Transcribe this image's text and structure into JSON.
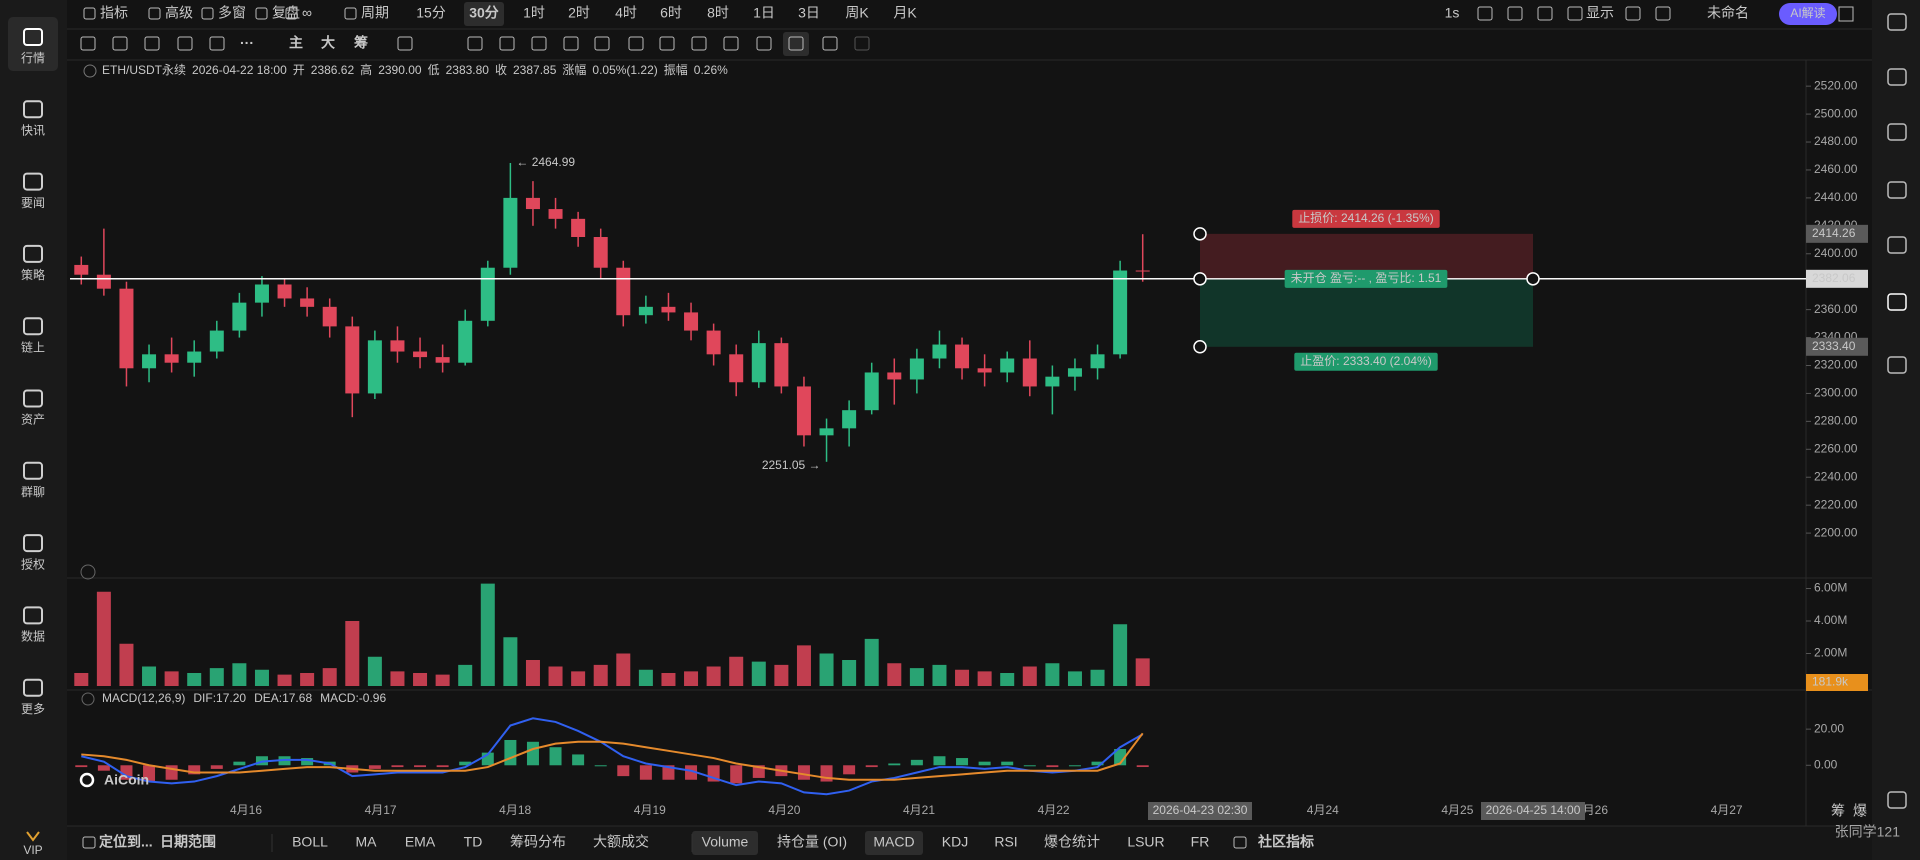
{
  "sidebar": {
    "items": [
      "行情",
      "快讯",
      "要闻",
      "策略",
      "链上",
      "资产",
      "群聊",
      "授权",
      "数据",
      "更多"
    ],
    "vip": "VIP"
  },
  "toolbar": {
    "left": [
      "指标",
      "高级",
      "多窗",
      "复盘",
      "∞",
      "周期"
    ],
    "periods": [
      {
        "label": "15分"
      },
      {
        "label": "30分",
        "active": true
      },
      {
        "label": "1时"
      },
      {
        "label": "2时"
      },
      {
        "label": "4时"
      },
      {
        "label": "6时"
      },
      {
        "label": "8时"
      },
      {
        "label": "1日"
      },
      {
        "label": "3日"
      },
      {
        "label": "周K"
      },
      {
        "label": "月K"
      }
    ],
    "right": [
      "1s",
      "显示",
      "未命名"
    ],
    "ai": "AI解读"
  },
  "drawing_tools": {
    "text_tools": [
      "···",
      "主",
      "大",
      "筹"
    ]
  },
  "info": {
    "symbol": "ETH/USDT永续",
    "time": "2026-04-22 18:00",
    "fields": [
      {
        "name": "开",
        "value": "2386.62"
      },
      {
        "name": "高",
        "value": "2390.00"
      },
      {
        "name": "低",
        "value": "2383.80"
      },
      {
        "name": "收",
        "value": "2387.85"
      },
      {
        "name": "涨幅",
        "value": "0.05%(1.22)"
      },
      {
        "name": "振幅",
        "value": "0.26%"
      }
    ]
  },
  "price": {
    "up_color": "#2ebd85",
    "down_color": "#e0475b",
    "ylim": [
      2170,
      2533
    ],
    "yticks": [
      {
        "value": 2520,
        "label": "2520.00"
      },
      {
        "value": 2500,
        "label": "2500.00"
      },
      {
        "value": 2480,
        "label": "2480.00"
      },
      {
        "value": 2460,
        "label": "2460.00"
      },
      {
        "value": 2440,
        "label": "2440.00"
      },
      {
        "value": 2420,
        "label": "2420.00"
      },
      {
        "value": 2400,
        "label": "2400.00"
      },
      {
        "value": 2380,
        "label": "2380.00"
      },
      {
        "value": 2360,
        "label": "2360.00"
      },
      {
        "value": 2340,
        "label": "2340.00"
      },
      {
        "value": 2320,
        "label": "2320.00"
      },
      {
        "value": 2300,
        "label": "2300.00"
      },
      {
        "value": 2280,
        "label": "2280.00"
      },
      {
        "value": 2260,
        "label": "2260.00"
      },
      {
        "value": 2240,
        "label": "2240.00"
      },
      {
        "value": 2220,
        "label": "2220.00"
      },
      {
        "value": 2200,
        "label": "2200.00"
      }
    ],
    "candles": [
      [
        2392,
        2398,
        2378,
        2385
      ],
      [
        2385,
        2418,
        2370,
        2375
      ],
      [
        2375,
        2380,
        2305,
        2318
      ],
      [
        2318,
        2335,
        2308,
        2328
      ],
      [
        2328,
        2340,
        2315,
        2322
      ],
      [
        2322,
        2338,
        2312,
        2330
      ],
      [
        2330,
        2352,
        2325,
        2345
      ],
      [
        2345,
        2372,
        2340,
        2365
      ],
      [
        2365,
        2384,
        2355,
        2378
      ],
      [
        2378,
        2382,
        2362,
        2368
      ],
      [
        2368,
        2376,
        2355,
        2362
      ],
      [
        2362,
        2368,
        2340,
        2348
      ],
      [
        2348,
        2355,
        2283,
        2300
      ],
      [
        2300,
        2345,
        2296,
        2338
      ],
      [
        2338,
        2348,
        2322,
        2330
      ],
      [
        2330,
        2340,
        2318,
        2326
      ],
      [
        2326,
        2335,
        2315,
        2322
      ],
      [
        2322,
        2360,
        2320,
        2352
      ],
      [
        2352,
        2395,
        2348,
        2390
      ],
      [
        2390,
        2464.99,
        2385,
        2440
      ],
      [
        2440,
        2452,
        2420,
        2432
      ],
      [
        2432,
        2440,
        2418,
        2425
      ],
      [
        2425,
        2430,
        2405,
        2412
      ],
      [
        2412,
        2418,
        2382,
        2390
      ],
      [
        2390,
        2395,
        2348,
        2356
      ],
      [
        2356,
        2370,
        2350,
        2362
      ],
      [
        2362,
        2372,
        2352,
        2358
      ],
      [
        2358,
        2365,
        2338,
        2345
      ],
      [
        2345,
        2350,
        2320,
        2328
      ],
      [
        2328,
        2335,
        2298,
        2308
      ],
      [
        2308,
        2345,
        2304,
        2336
      ],
      [
        2336,
        2340,
        2300,
        2305
      ],
      [
        2305,
        2312,
        2262,
        2270
      ],
      [
        2270,
        2282,
        2251.05,
        2275
      ],
      [
        2275,
        2295,
        2262,
        2288
      ],
      [
        2288,
        2322,
        2285,
        2315
      ],
      [
        2315,
        2325,
        2292,
        2310
      ],
      [
        2310,
        2332,
        2300,
        2325
      ],
      [
        2325,
        2345,
        2318,
        2335
      ],
      [
        2335,
        2340,
        2310,
        2318
      ],
      [
        2318,
        2328,
        2305,
        2315
      ],
      [
        2315,
        2330,
        2308,
        2325
      ],
      [
        2325,
        2338,
        2298,
        2305
      ],
      [
        2305,
        2320,
        2285,
        2312
      ],
      [
        2312,
        2325,
        2302,
        2318
      ],
      [
        2318,
        2335,
        2310,
        2328
      ],
      [
        2328,
        2395,
        2325,
        2388
      ],
      [
        2388,
        2414,
        2380,
        2387.85
      ]
    ],
    "annotations": [
      {
        "value": 2464.99,
        "label": "← 2464.99"
      },
      {
        "value": 2251.05,
        "label": "2251.05 →"
      }
    ]
  },
  "position_tool": {
    "stop": {
      "price": 2414.26,
      "label": "止损价: 2414.26 (-1.35%)"
    },
    "entry": {
      "price": 2382.06,
      "label": "未开仓 盈亏:-- , 盈亏比: 1.51"
    },
    "target": {
      "price": {
        "value": 2333.4,
        "label": "2333.40"
      },
      "label": "止盈价: 2333.40 (2.04%)"
    }
  },
  "volume": {
    "ylim": [
      0,
      6.4
    ],
    "yticks": [
      {
        "value": 6,
        "label": "6.00M"
      },
      {
        "value": 4,
        "label": "4.00M"
      },
      {
        "value": 2,
        "label": "2.00M"
      }
    ],
    "values": [
      0.8,
      5.8,
      2.6,
      1.2,
      0.9,
      0.8,
      1.1,
      1.4,
      1.0,
      0.7,
      0.8,
      1.1,
      4.0,
      1.8,
      0.9,
      0.8,
      0.7,
      1.3,
      6.3,
      3.0,
      1.6,
      1.2,
      0.9,
      1.3,
      2.0,
      1.0,
      0.8,
      0.9,
      1.2,
      1.8,
      1.5,
      1.3,
      2.5,
      2.0,
      1.6,
      2.9,
      1.4,
      1.1,
      1.3,
      1.0,
      0.9,
      0.8,
      1.2,
      1.4,
      0.9,
      1.0,
      3.8,
      1.7
    ],
    "current": "181.9k"
  },
  "macd": {
    "title": "MACD(12,26,9)",
    "dif_label": "DIF:17.20",
    "dea_label": "DEA:17.68",
    "macd_label": "MACD:-0.96",
    "ylim": [
      -17,
      40
    ],
    "yticks": [
      {
        "value": 20,
        "label": "20.00"
      },
      {
        "value": 0,
        "label": "0.00"
      }
    ],
    "dif_color": "#3060f0",
    "dea_color": "#e58a2c",
    "dif": [
      5,
      2,
      -6,
      -9,
      -10,
      -9,
      -6,
      -2,
      2,
      3,
      3,
      1,
      -6,
      -5,
      -4,
      -4,
      -4,
      -1,
      6,
      22,
      26,
      24,
      19,
      13,
      5,
      1,
      -1,
      -3,
      -7,
      -11,
      -9,
      -10,
      -15,
      -16,
      -14,
      -9,
      -7,
      -4,
      -1,
      -1,
      -2,
      -1,
      -3,
      -4,
      -3,
      -1,
      10,
      17.2
    ],
    "dea": [
      6,
      5,
      3,
      0,
      -2,
      -4,
      -4,
      -4,
      -3,
      -2,
      -1,
      -1,
      -2,
      -3,
      -3,
      -3,
      -3,
      -3,
      -1,
      4,
      9,
      12,
      13,
      13,
      12,
      10,
      8,
      6,
      4,
      1,
      -1,
      -3,
      -5,
      -7,
      -8,
      -8,
      -8,
      -7,
      -6,
      -5,
      -4,
      -3,
      -3,
      -3,
      -3,
      -3,
      1,
      17.68
    ],
    "hist": [
      -1,
      -3,
      -8,
      -9,
      -8,
      -5,
      -2,
      2,
      5,
      5,
      4,
      2,
      -4,
      -2,
      -1,
      -1,
      -1,
      2,
      7,
      14,
      13,
      10,
      6,
      0,
      -6,
      -8,
      -8,
      -8,
      -9,
      -10,
      -7,
      -6,
      -8,
      -9,
      -5,
      -1,
      1,
      3,
      5,
      4,
      2,
      2,
      0,
      -1,
      0,
      2,
      9,
      -0.96
    ]
  },
  "time_axis": {
    "labels": [
      "4月16",
      "4月17",
      "4月18",
      "4月19",
      "4月20",
      "4月21",
      "4月22",
      "4月24",
      "4月25",
      "4月26",
      "4月27"
    ],
    "crosshair": [
      "2026-04-23 02:30",
      "2026-04-25 14:00"
    ]
  },
  "bottom_bar": {
    "items": [
      "定位到...",
      "日期范围",
      "BOLL",
      "MA",
      "EMA",
      "TD",
      "筹码分布",
      "大额成交",
      "Volume",
      "持仓量 (OI)",
      "MACD",
      "KDJ",
      "RSI",
      "爆仓统计",
      "LSUR",
      "FR",
      "社区指标"
    ],
    "corner": [
      "筹",
      "爆"
    ]
  },
  "watermark": {
    "logo": "AiCoin",
    "user": "张同学121"
  }
}
